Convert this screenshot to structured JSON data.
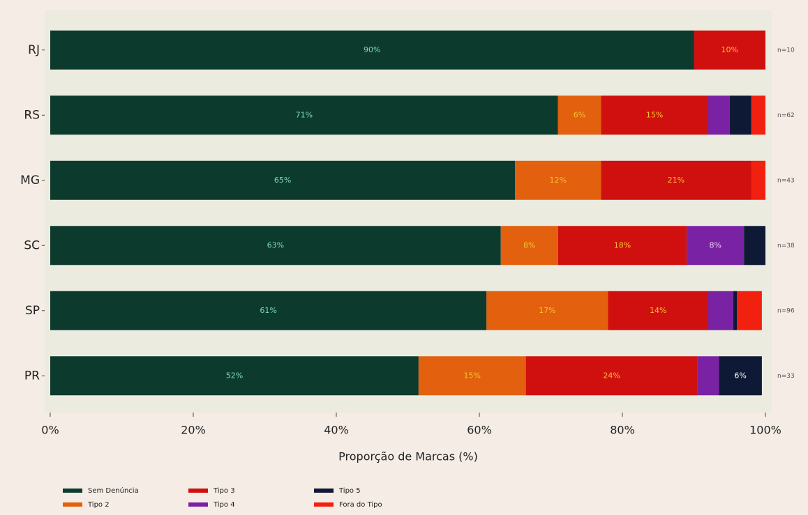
{
  "chart_data": {
    "type": "stacked_barh",
    "xlabel": "Proporção de Marcas (%)",
    "categories": [
      "RJ",
      "RS",
      "MG",
      "SC",
      "SP",
      "PR"
    ],
    "annotations": [
      "n=10",
      "n=62",
      "n=43",
      "n=38",
      "n=96",
      "n=33"
    ],
    "series": [
      {
        "name": "Sem Denúncia",
        "color": "#0c3b2e",
        "label_color": "#7fd6b8",
        "values": [
          90,
          71,
          65,
          63,
          61,
          51.5
        ],
        "value_labels": [
          "90%",
          "71%",
          "65%",
          "63%",
          "61%",
          "52%"
        ]
      },
      {
        "name": "Tipo 2",
        "color": "#e2600e",
        "label_color": "#f4c430",
        "values": [
          0,
          6,
          12,
          8,
          17,
          15
        ],
        "value_labels": [
          null,
          "6%",
          "12%",
          "8%",
          "17%",
          "15%"
        ]
      },
      {
        "name": "Tipo 3",
        "color": "#d0100e",
        "label_color": "#f4c430",
        "values": [
          10,
          15,
          21,
          18,
          14,
          24
        ],
        "value_labels": [
          "10%",
          "15%",
          "21%",
          "18%",
          "14%",
          "24%"
        ]
      },
      {
        "name": "Tipo 4",
        "color": "#7a22a4",
        "label_color": "#f0d0f0",
        "values": [
          0,
          3,
          0,
          8,
          3.5,
          3
        ],
        "value_labels": [
          null,
          null,
          null,
          "8%",
          null,
          null
        ]
      },
      {
        "name": "Tipo 5",
        "color": "#0e1936",
        "label_color": "#ffffff",
        "values": [
          0,
          3,
          0,
          3,
          0.5,
          6
        ],
        "value_labels": [
          null,
          null,
          null,
          null,
          null,
          "6%"
        ]
      },
      {
        "name": "Fora do Tipo",
        "color": "#f2200f",
        "label_color": "#ffffff",
        "values": [
          0,
          2,
          2,
          0,
          3.5,
          0
        ],
        "value_labels": [
          null,
          null,
          null,
          null,
          null,
          null
        ]
      }
    ],
    "xlim": [
      0,
      100
    ],
    "xticks": [
      {
        "value": 0,
        "label": "0%"
      },
      {
        "value": 20,
        "label": "20%"
      },
      {
        "value": 40,
        "label": "40%"
      },
      {
        "value": 60,
        "label": "60%"
      },
      {
        "value": 80,
        "label": "80%"
      },
      {
        "value": 100,
        "label": "100%"
      }
    ],
    "legend": "lower left"
  }
}
